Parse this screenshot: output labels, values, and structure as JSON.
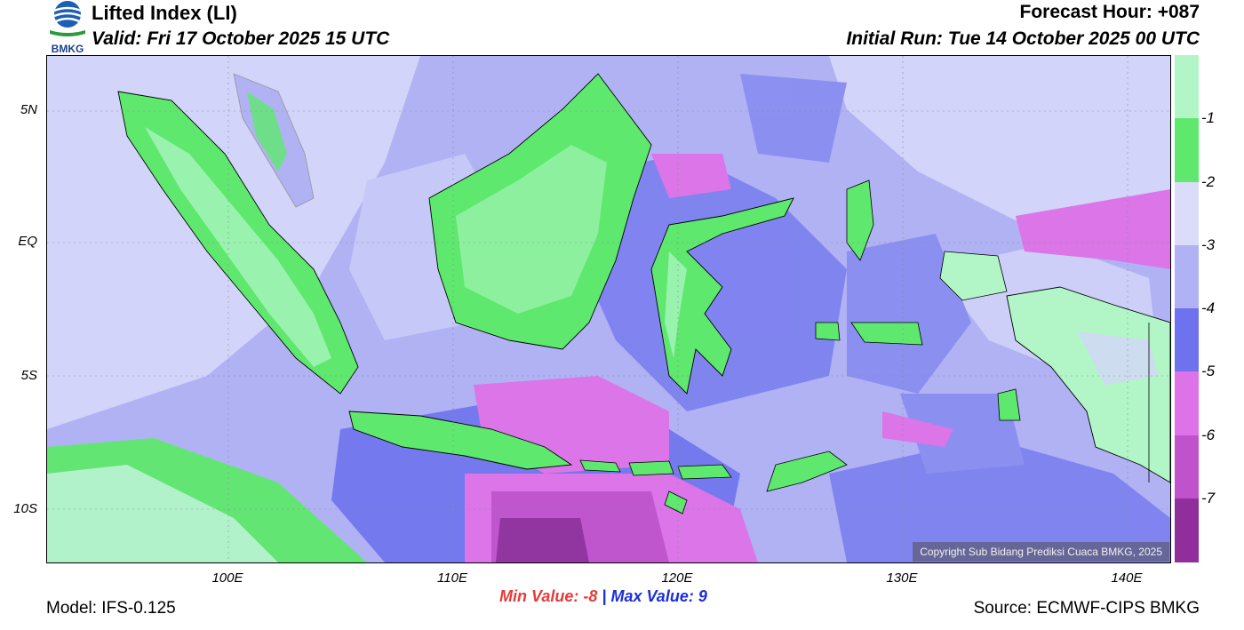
{
  "header": {
    "title": "Lifted Index (LI)",
    "valid": "Valid: Fri 17 October 2025 15 UTC",
    "forecast_hour": "Forecast Hour: +087",
    "initial_run": "Initial Run: Tue 14 October 2025 00 UTC"
  },
  "logo": {
    "text": "BMKG",
    "icon": "bmkg-globe-icon"
  },
  "axes": {
    "lat_labels": [
      "5N",
      "EQ",
      "5S",
      "10S"
    ],
    "lon_labels": [
      "100E",
      "110E",
      "120E",
      "130E",
      "140E"
    ]
  },
  "legend": {
    "labels": [
      "-1",
      "-2",
      "-3",
      "-4",
      "-5",
      "-6",
      "-7"
    ],
    "colors": [
      "#b2f6c8",
      "#5fe86e",
      "#dadcfa",
      "#b0b2f4",
      "#6e72ee",
      "#de72e8",
      "#c052cc",
      "#902f9c"
    ]
  },
  "stats": {
    "min_label": "Min Value:",
    "min_value": "-8",
    "separator": "|",
    "max_label": "Max Value:",
    "max_value": "9"
  },
  "footer": {
    "model": "Model: IFS-0.125",
    "source": "Source: ECMWF-CIPS BMKG",
    "copyright": "Copyright Sub Bidang Prediksi Cuaca BMKG, 2025"
  }
}
